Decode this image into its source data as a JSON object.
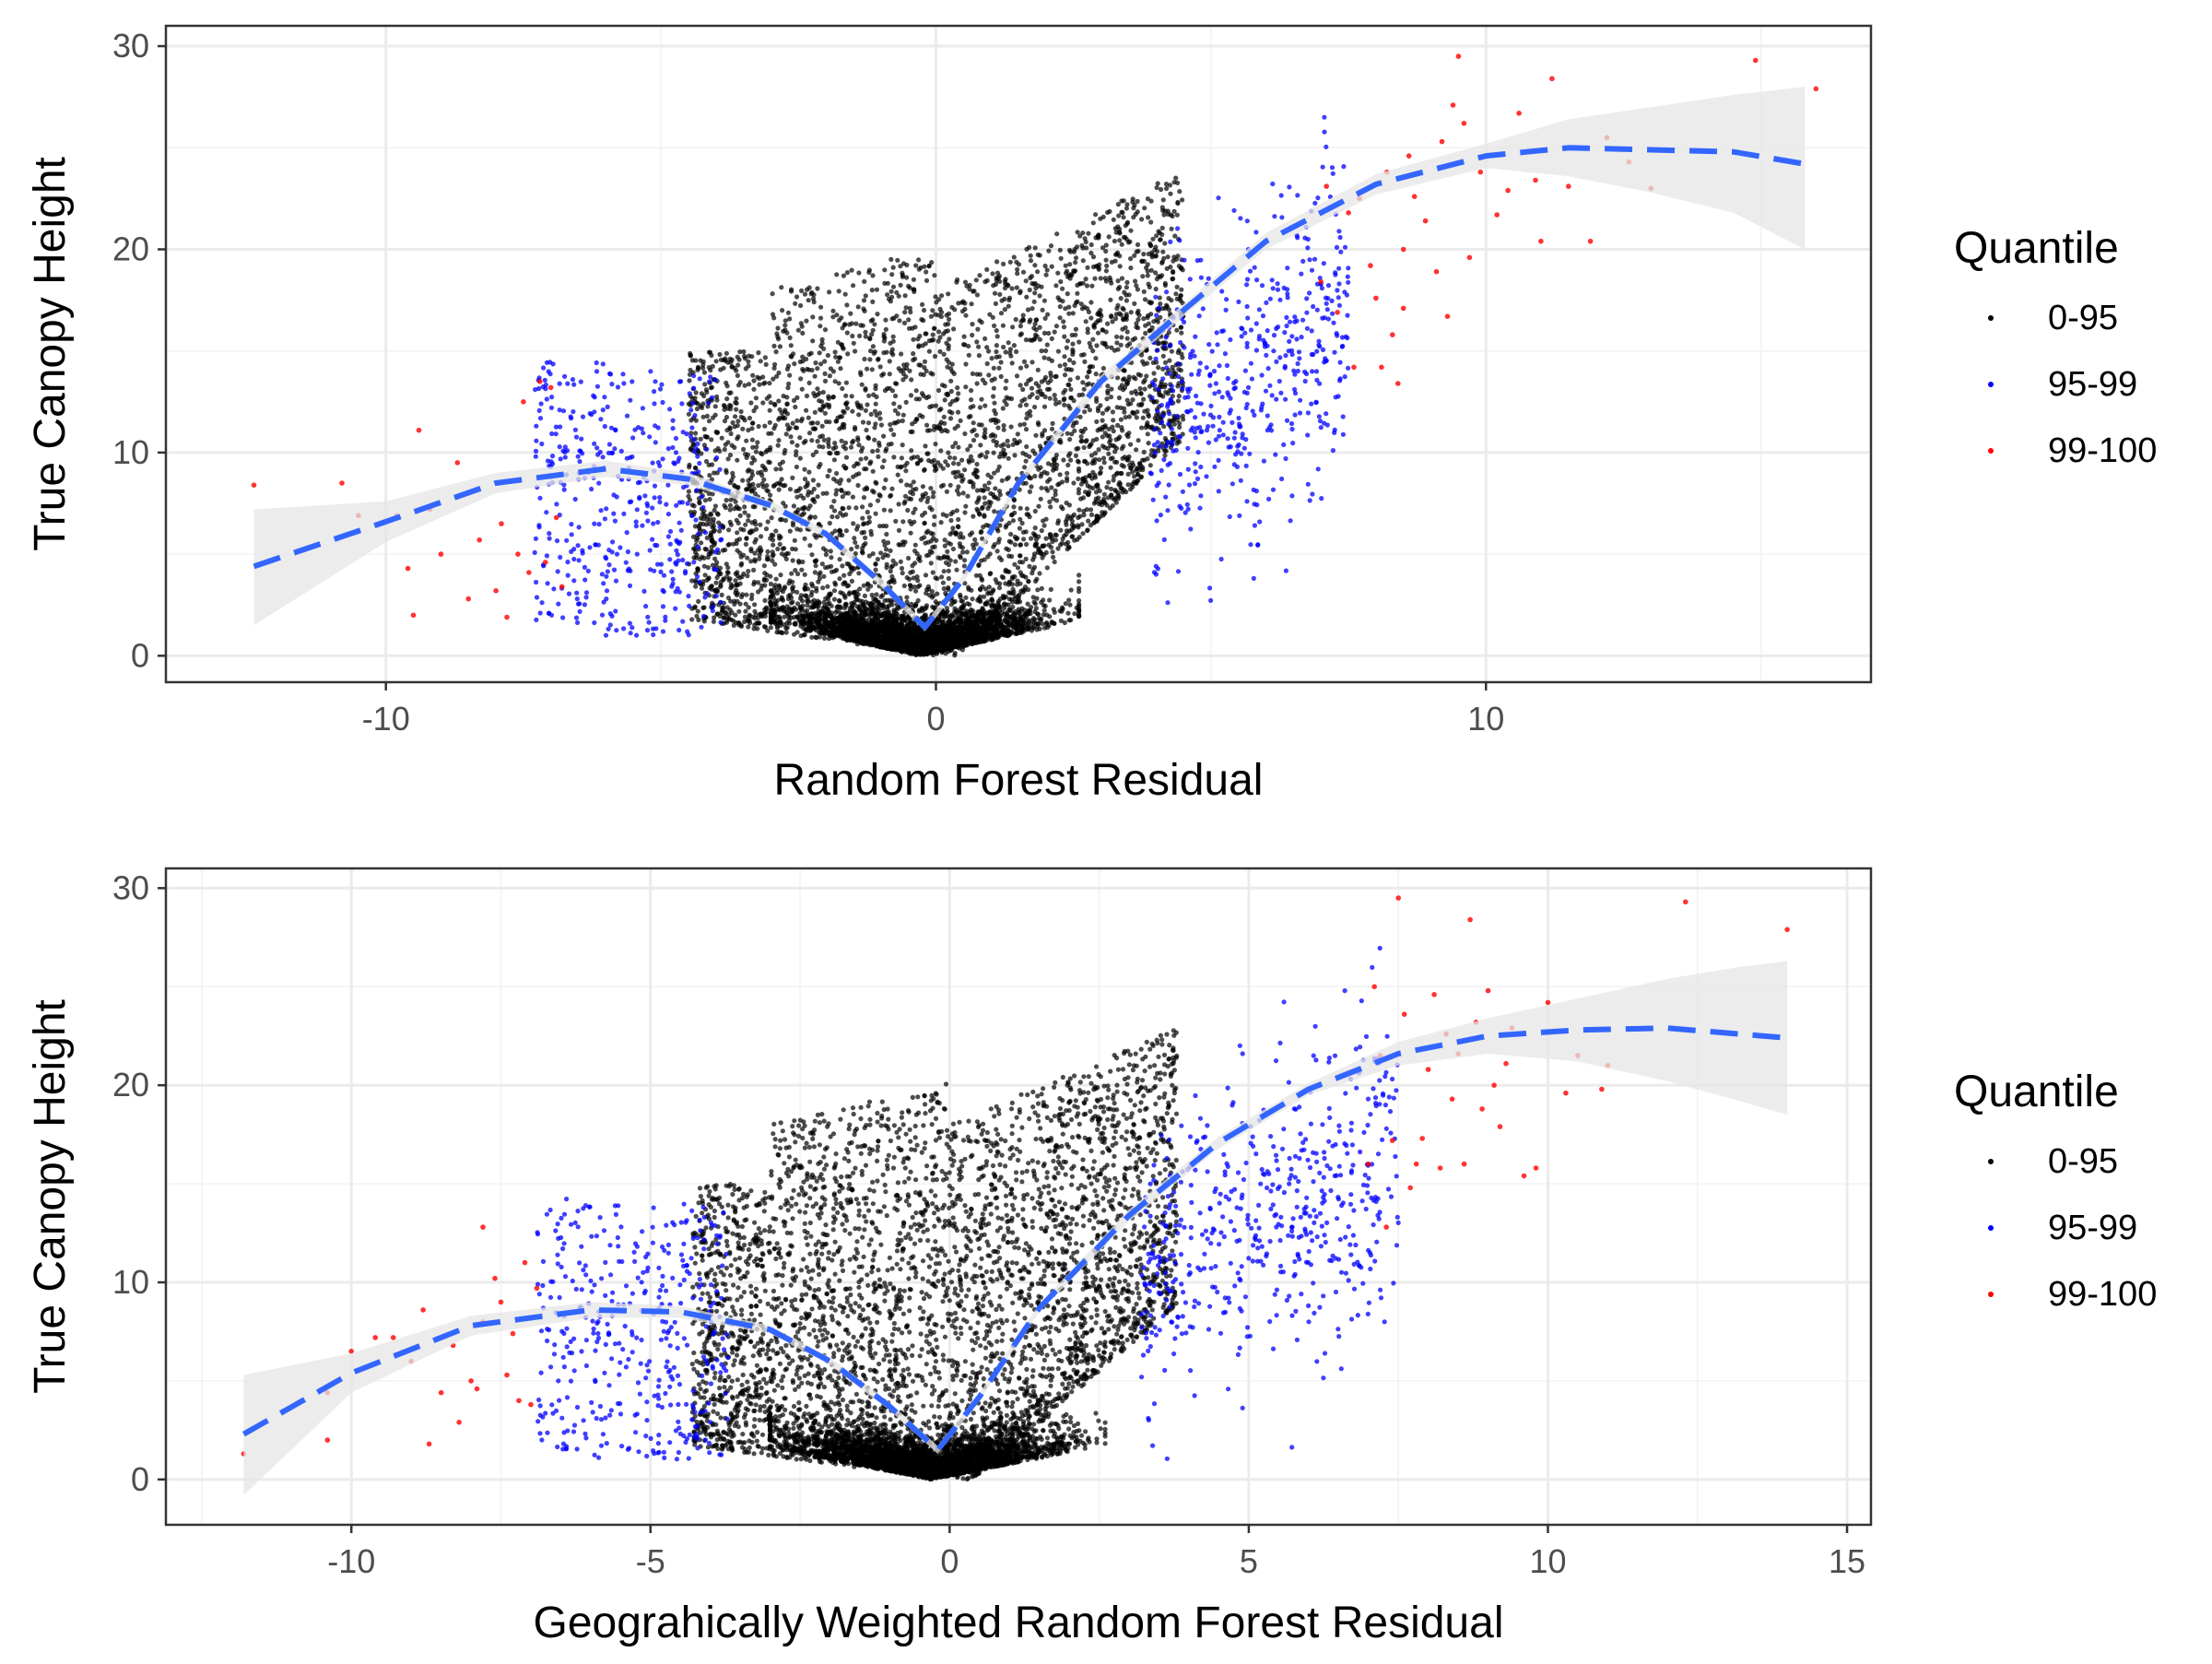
{
  "legend_title": "Quantile",
  "legend_items": [
    {
      "label": "0-95",
      "color": "#000000"
    },
    {
      "label": "95-99",
      "color": "#0000ff"
    },
    {
      "label": "99-100",
      "color": "#ff0000"
    }
  ],
  "chart_data": [
    {
      "type": "scatter",
      "xlabel": "Random Forest Residual",
      "ylabel": "True Canopy Height",
      "xlim": [
        -14,
        17
      ],
      "ylim": [
        -1.3,
        31
      ],
      "x_ticks": [
        -10,
        0,
        10
      ],
      "x_tick_labels": [
        "-10",
        "0",
        "10"
      ],
      "y_ticks": [
        0,
        10,
        20,
        30
      ],
      "y_tick_labels": [
        "0",
        "10",
        "20",
        "30"
      ],
      "grid": true,
      "legend": "right",
      "smooth_line_color": "#3366ff",
      "band_color": "#e5e5e5",
      "smooth_fit": {
        "x": [
          -12.4,
          -10,
          -8,
          -6,
          -4.5,
          -3,
          -2,
          -1,
          -0.2,
          0.5,
          1.5,
          3,
          4.5,
          6,
          8,
          10,
          11.5,
          13,
          14.5,
          15.8
        ],
        "y": [
          4.4,
          6.6,
          8.5,
          9.2,
          8.7,
          7.4,
          6.0,
          3.6,
          1.4,
          3.8,
          8.5,
          13.5,
          17.0,
          20.4,
          23.2,
          24.6,
          25.0,
          24.9,
          24.8,
          24.2
        ],
        "lower": [
          1.5,
          5.6,
          8.0,
          8.8,
          8.4,
          7.2,
          5.8,
          3.4,
          1.2,
          3.6,
          8.3,
          13.2,
          16.7,
          20.0,
          22.7,
          24.0,
          23.6,
          22.8,
          21.8,
          20.0
        ],
        "upper": [
          7.2,
          7.6,
          9.0,
          9.6,
          9.0,
          7.6,
          6.2,
          3.8,
          1.6,
          4.0,
          8.7,
          13.8,
          17.3,
          20.8,
          23.7,
          25.2,
          26.4,
          27.0,
          27.6,
          28.0
        ]
      },
      "outlier_points": {
        "99-100": [
          [
            -12.4,
            8.4
          ],
          [
            -10.8,
            8.5
          ],
          [
            -10.5,
            6.9
          ],
          [
            -9.8,
            6.9
          ],
          [
            -9.6,
            4.3
          ],
          [
            -9.5,
            2.0
          ],
          [
            -9.4,
            11.1
          ],
          [
            -9.2,
            7.2
          ],
          [
            -9.0,
            5.0
          ],
          [
            -8.7,
            9.5
          ],
          [
            -8.5,
            2.8
          ],
          [
            -8.3,
            5.7
          ],
          [
            -8.0,
            3.2
          ],
          [
            -7.9,
            6.5
          ],
          [
            -7.8,
            1.9
          ],
          [
            -7.6,
            5.0
          ],
          [
            -7.5,
            12.5
          ],
          [
            -7.4,
            4.1
          ],
          [
            -7.2,
            13.5
          ],
          [
            -7.1,
            4.6
          ],
          [
            -7.0,
            13.2
          ],
          [
            -6.9,
            6.8
          ],
          [
            -6.8,
            3.4
          ],
          [
            7.0,
            18.4
          ],
          [
            7.1,
            23.1
          ],
          [
            7.3,
            16.9
          ],
          [
            7.5,
            21.8
          ],
          [
            7.6,
            14.2
          ],
          [
            7.7,
            22.5
          ],
          [
            7.9,
            19.2
          ],
          [
            8.0,
            17.6
          ],
          [
            8.1,
            14.2
          ],
          [
            8.2,
            23.8
          ],
          [
            8.3,
            15.8
          ],
          [
            8.4,
            13.4
          ],
          [
            8.5,
            20.0
          ],
          [
            8.5,
            17.1
          ],
          [
            8.6,
            24.6
          ],
          [
            8.7,
            22.6
          ],
          [
            8.9,
            21.4
          ],
          [
            9.1,
            18.9
          ],
          [
            9.2,
            25.3
          ],
          [
            9.3,
            16.7
          ],
          [
            9.4,
            27.1
          ],
          [
            9.5,
            29.5
          ],
          [
            9.6,
            26.2
          ],
          [
            9.7,
            19.6
          ],
          [
            9.9,
            23.8
          ],
          [
            10.2,
            21.7
          ],
          [
            10.4,
            22.9
          ],
          [
            10.6,
            26.7
          ],
          [
            10.9,
            23.4
          ],
          [
            11.0,
            20.4
          ],
          [
            11.2,
            28.4
          ],
          [
            11.5,
            23.1
          ],
          [
            11.9,
            20.4
          ],
          [
            12.2,
            25.5
          ],
          [
            12.6,
            24.3
          ],
          [
            13.0,
            23.0
          ],
          [
            14.9,
            29.3
          ],
          [
            16.0,
            27.9
          ]
        ]
      },
      "series": [
        {
          "name": "0-95",
          "color": "#000000",
          "n_points": 7000,
          "x_range": [
            -4.5,
            4.5
          ]
        },
        {
          "name": "95-99",
          "color": "#0000ff",
          "n_points": 900,
          "x_range": [
            -7.3,
            7.5
          ]
        },
        {
          "name": "99-100",
          "color": "#ff0000",
          "n_points": 61
        }
      ]
    },
    {
      "type": "scatter",
      "xlabel": "Geograhically Weighted Random Forest Residual",
      "ylabel": "True Canopy Height",
      "xlim": [
        -13.1,
        15.4
      ],
      "ylim": [
        -2.3,
        31
      ],
      "x_ticks": [
        -10,
        -5,
        0,
        5,
        10,
        15
      ],
      "x_tick_labels": [
        "-10",
        "-5",
        "0",
        "5",
        "10",
        "15"
      ],
      "y_ticks": [
        0,
        10,
        20,
        30
      ],
      "y_tick_labels": [
        "0",
        "10",
        "20",
        "30"
      ],
      "grid": true,
      "legend": "right",
      "smooth_line_color": "#3366ff",
      "band_color": "#e5e5e5",
      "smooth_fit": {
        "x": [
          -11.8,
          -10,
          -8,
          -6,
          -4.5,
          -3,
          -2,
          -1,
          -0.2,
          0.5,
          1.5,
          3,
          4.5,
          6,
          7.5,
          9,
          10.5,
          12,
          13.2,
          14.0
        ],
        "y": [
          2.3,
          5.4,
          7.8,
          8.6,
          8.5,
          7.6,
          6.0,
          3.7,
          1.5,
          4.2,
          8.7,
          13.4,
          17.1,
          19.8,
          21.6,
          22.5,
          22.8,
          22.9,
          22.6,
          22.4
        ],
        "lower": [
          -0.8,
          4.4,
          7.3,
          8.2,
          8.2,
          7.4,
          5.8,
          3.5,
          1.3,
          4.0,
          8.5,
          13.1,
          16.8,
          19.5,
          21.0,
          21.6,
          21.2,
          20.2,
          19.2,
          18.5
        ],
        "upper": [
          5.3,
          6.4,
          8.3,
          9.0,
          8.8,
          7.8,
          6.2,
          3.9,
          1.7,
          4.4,
          8.9,
          13.7,
          17.4,
          20.1,
          22.2,
          23.4,
          24.4,
          25.4,
          26.0,
          26.3
        ]
      },
      "outlier_points": {
        "99-100": [
          [
            -11.8,
            1.3
          ],
          [
            -10.4,
            4.4
          ],
          [
            -10.4,
            2.0
          ],
          [
            -10.0,
            6.5
          ],
          [
            -9.6,
            7.2
          ],
          [
            -9.3,
            7.2
          ],
          [
            -9.0,
            6.0
          ],
          [
            -8.8,
            8.6
          ],
          [
            -8.7,
            1.8
          ],
          [
            -8.5,
            4.4
          ],
          [
            -8.3,
            6.8
          ],
          [
            -8.2,
            2.9
          ],
          [
            -8.0,
            5.0
          ],
          [
            -7.9,
            4.6
          ],
          [
            -7.8,
            12.8
          ],
          [
            -7.8,
            8.0
          ],
          [
            -7.6,
            10.2
          ],
          [
            -7.5,
            9.0
          ],
          [
            -7.4,
            5.3
          ],
          [
            -7.3,
            7.4
          ],
          [
            -7.2,
            4.0
          ],
          [
            -7.1,
            11.0
          ],
          [
            -7.0,
            3.8
          ],
          [
            -6.9,
            9.7
          ],
          [
            7.0,
            16.0
          ],
          [
            7.1,
            25.0
          ],
          [
            7.2,
            21.5
          ],
          [
            7.3,
            12.8
          ],
          [
            7.4,
            17.2
          ],
          [
            7.5,
            29.5
          ],
          [
            7.6,
            23.6
          ],
          [
            7.7,
            14.8
          ],
          [
            7.8,
            16.0
          ],
          [
            7.9,
            17.3
          ],
          [
            8.0,
            20.8
          ],
          [
            8.1,
            24.6
          ],
          [
            8.2,
            15.8
          ],
          [
            8.3,
            22.6
          ],
          [
            8.4,
            19.3
          ],
          [
            8.5,
            21.6
          ],
          [
            8.6,
            16.0
          ],
          [
            8.7,
            28.4
          ],
          [
            8.8,
            23.2
          ],
          [
            8.9,
            18.8
          ],
          [
            9.0,
            24.8
          ],
          [
            9.1,
            20.0
          ],
          [
            9.2,
            17.9
          ],
          [
            9.3,
            21.1
          ],
          [
            9.4,
            22.9
          ],
          [
            9.6,
            15.4
          ],
          [
            9.8,
            15.8
          ],
          [
            10.0,
            24.2
          ],
          [
            10.3,
            19.6
          ],
          [
            10.5,
            21.5
          ],
          [
            10.9,
            19.8
          ],
          [
            11.0,
            21.0
          ],
          [
            12.3,
            29.3
          ],
          [
            14.0,
            27.9
          ]
        ]
      },
      "series": [
        {
          "name": "0-95",
          "color": "#000000",
          "n_points": 7000,
          "x_range": [
            -4.3,
            3.8
          ]
        },
        {
          "name": "95-99",
          "color": "#0000ff",
          "n_points": 900,
          "x_range": [
            -6.9,
            7.5
          ]
        },
        {
          "name": "99-100",
          "color": "#ff0000",
          "n_points": 58
        }
      ]
    }
  ]
}
